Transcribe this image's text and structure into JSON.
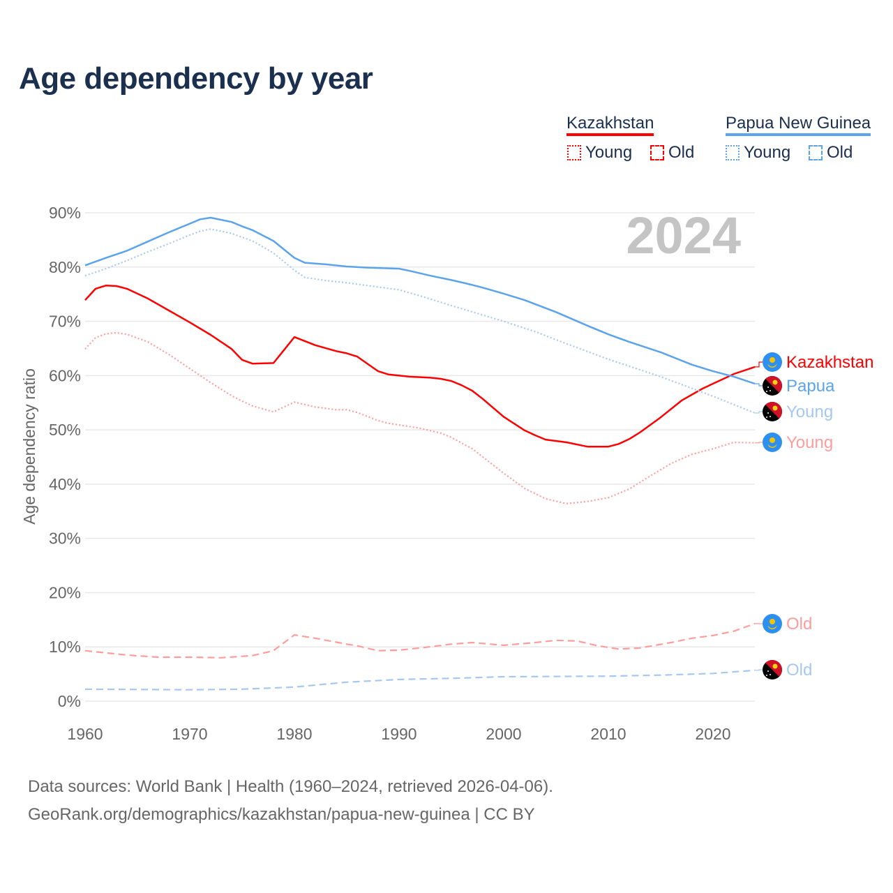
{
  "chart_data": {
    "type": "line",
    "title": "Age dependency by year",
    "xlabel": "",
    "ylabel": "Age dependency ratio",
    "xlim": [
      1960,
      2024
    ],
    "ylim": [
      0,
      90
    ],
    "x_ticks": [
      "1960",
      "1970",
      "1980",
      "1990",
      "2000",
      "2010",
      "2020"
    ],
    "y_ticks": [
      "0%",
      "10%",
      "20%",
      "30%",
      "40%",
      "50%",
      "60%",
      "70%",
      "80%",
      "90%"
    ],
    "year_watermark": "2024",
    "legend": {
      "placement": "top-right",
      "groups": [
        {
          "country": "Kazakhstan",
          "color": "#ff0000",
          "young_label": "Young",
          "old_label": "Old"
        },
        {
          "country": "Papua New Guinea",
          "color": "#5ba3ec",
          "young_label": "Young",
          "old_label": "Old"
        }
      ]
    },
    "series": [
      {
        "name": "Kazakhstan",
        "end_label": "Kazakhstan",
        "flag": "kazakhstan-flag",
        "color": "#ff0000",
        "style": "solid",
        "x": [
          1960,
          1961,
          1962,
          1963,
          1964,
          1966,
          1968,
          1970,
          1972,
          1974,
          1975,
          1976,
          1978,
          1979,
          1980,
          1982,
          1984,
          1985,
          1986,
          1988,
          1989,
          1991,
          1993,
          1994,
          1995,
          1996,
          1997,
          1998,
          2000,
          2002,
          2003,
          2004,
          2006,
          2008,
          2010,
          2011,
          2012,
          2013,
          2015,
          2017,
          2019,
          2021,
          2022,
          2024
        ],
        "y": [
          73.9,
          76.0,
          76.6,
          76.5,
          76.0,
          74.2,
          72.0,
          69.8,
          67.5,
          64.9,
          62.9,
          62.2,
          62.3,
          64.7,
          67.1,
          65.6,
          64.5,
          64.1,
          63.5,
          60.8,
          60.2,
          59.8,
          59.6,
          59.4,
          59.0,
          58.2,
          57.2,
          55.7,
          52.4,
          49.9,
          49.0,
          48.2,
          47.7,
          46.9,
          46.9,
          47.4,
          48.3,
          49.5,
          52.3,
          55.4,
          57.6,
          59.4,
          60.3,
          61.6
        ]
      },
      {
        "name": "Papua New Guinea",
        "end_label": "Papua",
        "flag": "papua-new-guinea-flag",
        "color": "#5ba3ec",
        "style": "solid",
        "x": [
          1960,
          1962,
          1964,
          1966,
          1968,
          1970,
          1971,
          1972,
          1974,
          1975,
          1976,
          1978,
          1980,
          1981,
          1983,
          1985,
          1987,
          1990,
          1991,
          1993,
          1995,
          1997,
          1998,
          2000,
          2002,
          2005,
          2008,
          2010,
          2012,
          2015,
          2018,
          2020,
          2022,
          2024
        ],
        "y": [
          80.3,
          81.7,
          83.0,
          84.7,
          86.4,
          88.0,
          88.8,
          89.1,
          88.3,
          87.5,
          86.8,
          84.8,
          81.7,
          80.8,
          80.5,
          80.1,
          79.9,
          79.7,
          79.3,
          78.4,
          77.6,
          76.7,
          76.2,
          75.1,
          73.9,
          71.7,
          69.2,
          67.6,
          66.2,
          64.3,
          62.0,
          60.8,
          59.8,
          58.5
        ]
      },
      {
        "name": "Papua New Guinea Young",
        "end_label": "Young",
        "flag": "papua-new-guinea-flag",
        "color": "#a6c8f0",
        "style": "dotted",
        "x": [
          1960,
          1962,
          1964,
          1966,
          1968,
          1970,
          1971,
          1972,
          1974,
          1976,
          1978,
          1980,
          1981,
          1983,
          1985,
          1990,
          1992,
          1995,
          2000,
          2003,
          2005,
          2010,
          2015,
          2020,
          2024
        ],
        "y": [
          78.4,
          79.7,
          81.2,
          82.8,
          84.3,
          85.9,
          86.6,
          87.0,
          86.2,
          84.8,
          82.6,
          79.4,
          78.1,
          77.5,
          77.1,
          75.8,
          74.7,
          72.9,
          70.0,
          68.1,
          66.6,
          63.0,
          59.8,
          56.2,
          53.1
        ]
      },
      {
        "name": "Kazakhstan Young",
        "end_label": "Young",
        "flag": "kazakhstan-flag",
        "color": "#ff9c9c",
        "style": "dotted",
        "x": [
          1960,
          1961,
          1962,
          1963,
          1964,
          1966,
          1968,
          1970,
          1972,
          1974,
          1975,
          1976,
          1978,
          1980,
          1982,
          1984,
          1985,
          1986,
          1988,
          1989,
          1990,
          1992,
          1994,
          1995,
          1997,
          2000,
          2002,
          2004,
          2006,
          2008,
          2010,
          2012,
          2014,
          2016,
          2018,
          2020,
          2022,
          2024
        ],
        "y": [
          64.9,
          67.0,
          67.7,
          67.9,
          67.6,
          66.2,
          63.9,
          61.3,
          58.7,
          56.3,
          55.3,
          54.4,
          53.3,
          55.1,
          54.2,
          53.7,
          53.7,
          53.2,
          51.7,
          51.2,
          50.9,
          50.3,
          49.4,
          48.6,
          46.5,
          42.0,
          39.2,
          37.3,
          36.4,
          36.8,
          37.5,
          39.1,
          41.5,
          43.8,
          45.5,
          46.5,
          47.7,
          47.6
        ]
      },
      {
        "name": "Kazakhstan Old",
        "end_label": "Old",
        "flag": "kazakhstan-flag",
        "color": "#ff9c9c",
        "style": "dashed",
        "x": [
          1960,
          1962,
          1964,
          1967,
          1970,
          1973,
          1976,
          1978,
          1980,
          1982,
          1985,
          1986,
          1988,
          1990,
          1992,
          1995,
          1997,
          2000,
          2003,
          2005,
          2007,
          2009,
          2011,
          2013,
          2016,
          2018,
          2020,
          2022,
          2024
        ],
        "y": [
          9.3,
          8.9,
          8.5,
          8.1,
          8.1,
          8.0,
          8.4,
          9.3,
          12.2,
          11.6,
          10.5,
          10.2,
          9.3,
          9.4,
          9.8,
          10.5,
          10.8,
          10.3,
          10.8,
          11.2,
          11.1,
          10.2,
          9.6,
          9.8,
          10.8,
          11.6,
          12.1,
          12.9,
          14.3
        ]
      },
      {
        "name": "Papua New Guinea Old",
        "end_label": "Old",
        "flag": "papua-new-guinea-flag",
        "color": "#a6c8f0",
        "style": "dashed",
        "x": [
          1960,
          1970,
          1975,
          1980,
          1985,
          1990,
          1995,
          2000,
          2010,
          2015,
          2020,
          2024
        ],
        "y": [
          2.2,
          2.1,
          2.2,
          2.6,
          3.5,
          4.0,
          4.2,
          4.5,
          4.6,
          4.8,
          5.1,
          5.7
        ]
      }
    ]
  },
  "footer": {
    "source_line": "Data sources: World Bank | Health (1960–2024, retrieved 2026-04-06).",
    "url_line": "GeoRank.org/demographics/kazakhstan/papua-new-guinea | CC BY"
  }
}
